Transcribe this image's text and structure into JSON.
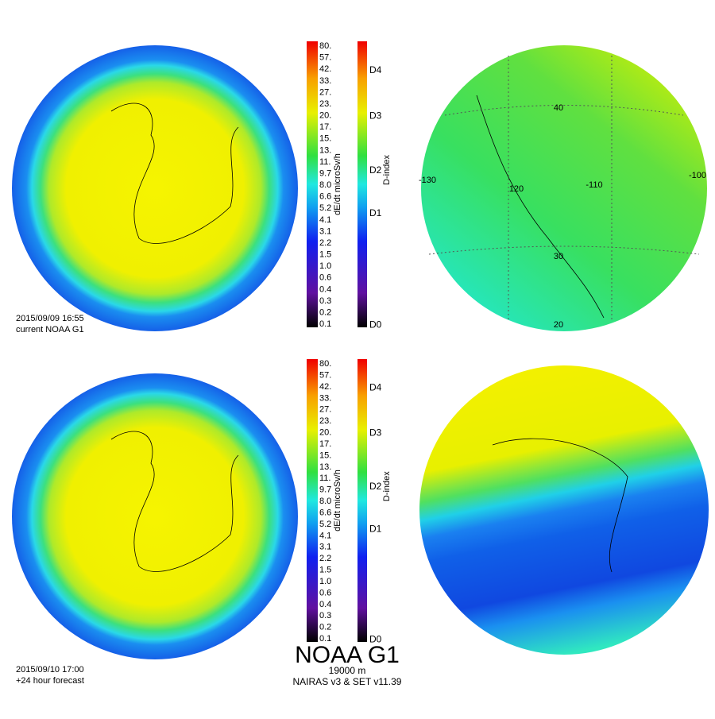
{
  "panels": [
    {
      "timestamp": "2015/09/09 16:55",
      "note": "current NOAA G1",
      "dose_scale": {
        "label": "dE/dt microSv/h",
        "ticks": [
          "80.",
          "57.",
          "42.",
          "33.",
          "27.",
          "23.",
          "20.",
          "17.",
          "15.",
          "13.",
          "11.",
          "9.7",
          "8.0",
          "6.6",
          "5.2",
          "4.1",
          "3.1",
          "2.2",
          "1.5",
          "1.0",
          "0.6",
          "0.4",
          "0.3",
          "0.2",
          "0.1"
        ]
      },
      "dindex_scale": {
        "label": "D-index",
        "ticks": [
          "D4",
          "D3",
          "D2",
          "D1",
          "D0"
        ]
      },
      "map_labels": [
        "40",
        "-130",
        "120",
        "-110",
        "-100",
        "30",
        "20"
      ]
    },
    {
      "timestamp": "2015/09/10 17:00",
      "note": "+24 hour forecast",
      "dose_scale": {
        "label": "dE/dt microSv/h",
        "ticks": [
          "80.",
          "57.",
          "42.",
          "33.",
          "27.",
          "23.",
          "20.",
          "17.",
          "15.",
          "13.",
          "11.",
          "9.7",
          "8.0",
          "6.6",
          "5.2",
          "4.1",
          "3.1",
          "2.2",
          "1.5",
          "1.0",
          "0.6",
          "0.4",
          "0.3",
          "0.2",
          "0.1"
        ]
      },
      "dindex_scale": {
        "label": "D-index",
        "ticks": [
          "D4",
          "D3",
          "D2",
          "D1",
          "D0"
        ]
      }
    }
  ],
  "footer": {
    "title": "NOAA G1",
    "altitude": "19000 m",
    "model": "NAIRAS v3 & SET v11.39"
  }
}
